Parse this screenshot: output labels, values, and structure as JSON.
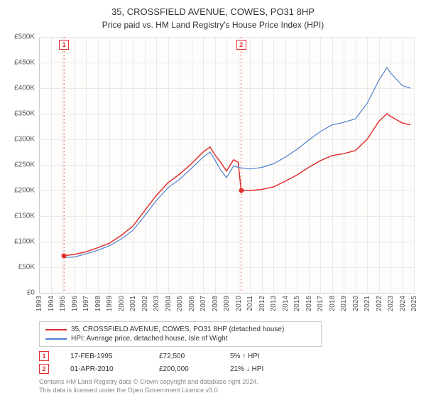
{
  "title": "35, CROSSFIELD AVENUE, COWES, PO31 8HP",
  "subtitle": "Price paid vs. HM Land Registry's House Price Index (HPI)",
  "chart": {
    "type": "line",
    "background_color": "#fefdfb",
    "grid_color": "#e8e8e8",
    "axis_color": "#cccccc",
    "text_color": "#555555",
    "xlim": [
      1993,
      2025
    ],
    "ylim": [
      0,
      500000
    ],
    "ytick_step": 50000,
    "y_ticks": [
      "£0",
      "£50K",
      "£100K",
      "£150K",
      "£200K",
      "£250K",
      "£300K",
      "£350K",
      "£400K",
      "£450K",
      "£500K"
    ],
    "x_ticks": [
      "1993",
      "1994",
      "1995",
      "1996",
      "1997",
      "1998",
      "1999",
      "2000",
      "2001",
      "2002",
      "2003",
      "2004",
      "2005",
      "2006",
      "2007",
      "2008",
      "2009",
      "2010",
      "2011",
      "2012",
      "2013",
      "2014",
      "2015",
      "2016",
      "2017",
      "2018",
      "2019",
      "2020",
      "2021",
      "2022",
      "2023",
      "2024",
      "2025"
    ],
    "label_fontsize": 10,
    "series": [
      {
        "name": "price_paid",
        "label": "35, CROSSFIELD AVENUE, COWES, PO31 8HP (detached house)",
        "color": "#e03030",
        "line_width": 1.5,
        "data": [
          [
            1995.13,
            72500
          ],
          [
            1996,
            75000
          ],
          [
            1997,
            80000
          ],
          [
            1998,
            88000
          ],
          [
            1999,
            97000
          ],
          [
            2000,
            112000
          ],
          [
            2001,
            130000
          ],
          [
            2002,
            160000
          ],
          [
            2003,
            190000
          ],
          [
            2004,
            215000
          ],
          [
            2005,
            232000
          ],
          [
            2006,
            252000
          ],
          [
            2007,
            275000
          ],
          [
            2007.6,
            285000
          ],
          [
            2008,
            270000
          ],
          [
            2008.5,
            255000
          ],
          [
            2009,
            238000
          ],
          [
            2009.6,
            260000
          ],
          [
            2010,
            255000
          ],
          [
            2010.25,
            200000
          ],
          [
            2011,
            200000
          ],
          [
            2012,
            202000
          ],
          [
            2013,
            207000
          ],
          [
            2014,
            218000
          ],
          [
            2015,
            230000
          ],
          [
            2016,
            245000
          ],
          [
            2017,
            258000
          ],
          [
            2018,
            268000
          ],
          [
            2019,
            272000
          ],
          [
            2020,
            278000
          ],
          [
            2021,
            300000
          ],
          [
            2022,
            335000
          ],
          [
            2022.7,
            350000
          ],
          [
            2023,
            345000
          ],
          [
            2024,
            332000
          ],
          [
            2024.7,
            328000
          ]
        ]
      },
      {
        "name": "hpi",
        "label": "HPI: Average price, detached house, Isle of Wight",
        "color": "#5080d0",
        "line_width": 1.2,
        "data": [
          [
            1995.13,
            69000
          ],
          [
            1996,
            70000
          ],
          [
            1997,
            76000
          ],
          [
            1998,
            83000
          ],
          [
            1999,
            92000
          ],
          [
            2000,
            105000
          ],
          [
            2001,
            122000
          ],
          [
            2002,
            150000
          ],
          [
            2003,
            180000
          ],
          [
            2004,
            205000
          ],
          [
            2005,
            222000
          ],
          [
            2006,
            243000
          ],
          [
            2007,
            265000
          ],
          [
            2007.6,
            275000
          ],
          [
            2008,
            260000
          ],
          [
            2008.5,
            240000
          ],
          [
            2009,
            225000
          ],
          [
            2009.6,
            248000
          ],
          [
            2010,
            245000
          ],
          [
            2011,
            242000
          ],
          [
            2012,
            245000
          ],
          [
            2013,
            252000
          ],
          [
            2014,
            265000
          ],
          [
            2015,
            280000
          ],
          [
            2016,
            298000
          ],
          [
            2017,
            315000
          ],
          [
            2018,
            328000
          ],
          [
            2019,
            333000
          ],
          [
            2020,
            340000
          ],
          [
            2021,
            370000
          ],
          [
            2022,
            415000
          ],
          [
            2022.7,
            440000
          ],
          [
            2023,
            430000
          ],
          [
            2024,
            405000
          ],
          [
            2024.7,
            400000
          ]
        ]
      }
    ],
    "markers": [
      {
        "n": "1",
        "year": 1995.13,
        "price": 72500,
        "color": "#e03030"
      },
      {
        "n": "2",
        "year": 2010.25,
        "price": 200000,
        "color": "#e03030"
      }
    ]
  },
  "legend": {
    "border_color": "#cccccc",
    "items": [
      {
        "color": "#e03030",
        "label": "35, CROSSFIELD AVENUE, COWES, PO31 8HP (detached house)"
      },
      {
        "color": "#5080d0",
        "label": "HPI: Average price, detached house, Isle of Wight"
      }
    ]
  },
  "sales": [
    {
      "n": "1",
      "color": "#e03030",
      "date": "17-FEB-1995",
      "price": "£72,500",
      "pct": "5% ↑ HPI"
    },
    {
      "n": "2",
      "color": "#e03030",
      "date": "01-APR-2010",
      "price": "£200,000",
      "pct": "21% ↓ HPI"
    }
  ],
  "attribution": {
    "line1": "Contains HM Land Registry data © Crown copyright and database right 2024.",
    "line2": "This data is licensed under the Open Government Licence v3.0."
  }
}
